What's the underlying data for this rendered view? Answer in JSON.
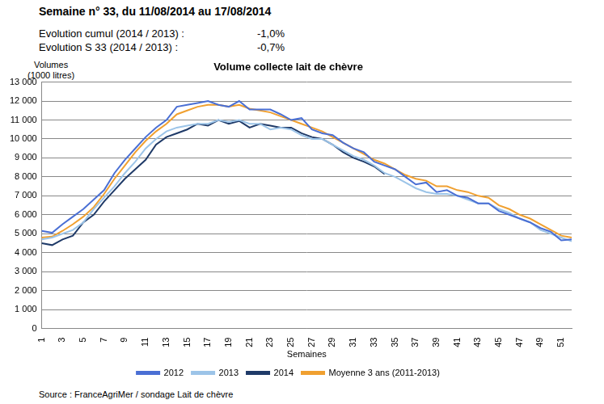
{
  "header": {
    "title": "Semaine n° 33, du 11/08/2014 au 17/08/2014",
    "rows": [
      [
        "Evolution cumul (2014 / 2013) :",
        "-1,0%"
      ],
      [
        "Evolution S 33 (2014 / 2013) :",
        "-0,7%"
      ]
    ]
  },
  "source": "Source : FranceAgriMer / sondage Lait de chèvre",
  "chart_data": {
    "type": "line",
    "title": "Volume collecte lait de chèvre",
    "y_label": [
      "Volumes",
      "(1000 litres)"
    ],
    "x_label": "Semaines",
    "categories": [
      1,
      null,
      3,
      null,
      5,
      null,
      7,
      null,
      9,
      null,
      11,
      null,
      13,
      null,
      15,
      null,
      17,
      null,
      19,
      null,
      21,
      null,
      23,
      null,
      25,
      null,
      27,
      null,
      29,
      null,
      31,
      null,
      33,
      null,
      35,
      null,
      37,
      null,
      39,
      null,
      41,
      null,
      43,
      null,
      45,
      null,
      47,
      null,
      49,
      null,
      51,
      null
    ],
    "series": [
      {
        "name": "2012",
        "color": "#4a6fd4",
        "values": [
          5150,
          5050,
          5500,
          5900,
          6300,
          6800,
          7300,
          8200,
          8900,
          9500,
          10100,
          10600,
          11000,
          11700,
          11800,
          11900,
          12000,
          11800,
          11700,
          12000,
          11550,
          11550,
          11550,
          11300,
          11000,
          11100,
          10500,
          10300,
          10200,
          9800,
          9500,
          9300,
          8800,
          8600,
          8400,
          8000,
          7600,
          7700,
          7200,
          7300,
          7000,
          6900,
          6600,
          6600,
          6200,
          6000,
          5800,
          5600,
          5300,
          5100,
          4650,
          4700
        ]
      },
      {
        "name": "2013",
        "color": "#9cc4e8",
        "values": [
          4700,
          4800,
          5000,
          5200,
          5600,
          6300,
          6900,
          7500,
          8200,
          8800,
          9500,
          10000,
          10400,
          10600,
          10700,
          10800,
          10800,
          11000,
          10900,
          11000,
          10800,
          10800,
          10500,
          10600,
          10500,
          10200,
          10000,
          10000,
          9700,
          9400,
          9100,
          8900,
          8600,
          8200,
          8000,
          7700,
          7400,
          7200,
          7100,
          7100,
          7000,
          6800,
          6600,
          6600,
          6300,
          6100,
          5800,
          5600,
          5200,
          5000,
          4800,
          4600
        ]
      },
      {
        "name": "2014",
        "color": "#1f3a68",
        "values": [
          4500,
          4400,
          4700,
          4900,
          5600,
          6000,
          6700,
          7300,
          7900,
          8400,
          8900,
          9700,
          10100,
          10300,
          10500,
          10800,
          10700,
          11000,
          10800,
          10950,
          10600,
          10800,
          10700,
          10600,
          10600,
          10300,
          10100,
          10000,
          9700,
          9300,
          9000,
          8800,
          8550,
          8150,
          null,
          null,
          null,
          null,
          null,
          null,
          null,
          null,
          null,
          null,
          null,
          null,
          null,
          null,
          null,
          null,
          null,
          null
        ]
      },
      {
        "name": "Moyenne 3 ans (2011-2013)",
        "color": "#f0a030",
        "values": [
          4800,
          4850,
          5150,
          5500,
          5900,
          6400,
          7100,
          7900,
          8600,
          9300,
          9900,
          10400,
          10800,
          11300,
          11500,
          11700,
          11800,
          11800,
          11700,
          11800,
          11600,
          11500,
          11400,
          11200,
          11000,
          10800,
          10600,
          10400,
          10100,
          9800,
          9500,
          9200,
          8900,
          8700,
          8400,
          8100,
          7900,
          7800,
          7500,
          7500,
          7300,
          7200,
          7000,
          6900,
          6500,
          6300,
          6000,
          5800,
          5500,
          5200,
          4900,
          4800
        ]
      }
    ],
    "ylim": [
      0,
      13000
    ],
    "yticks": [
      0,
      {
        "value": 1000,
        "label": "1 000"
      },
      {
        "value": 2000,
        "label": "2 000"
      },
      {
        "value": 3000,
        "label": "3 000"
      },
      {
        "value": 4000,
        "label": "4 000"
      },
      {
        "value": 5000,
        "label": "5 000"
      },
      {
        "value": 6000,
        "label": "6 000"
      },
      {
        "value": 7000,
        "label": "7 000"
      },
      {
        "value": 8000,
        "label": "8 000"
      },
      {
        "value": 9000,
        "label": "9 000"
      },
      {
        "value": 10000,
        "label": "10 000"
      },
      {
        "value": 11000,
        "label": "11 000"
      },
      {
        "value": 12000,
        "label": "12 000"
      },
      {
        "value": 13000,
        "label": "13 000"
      }
    ],
    "grid": true,
    "legend": "bottom"
  }
}
